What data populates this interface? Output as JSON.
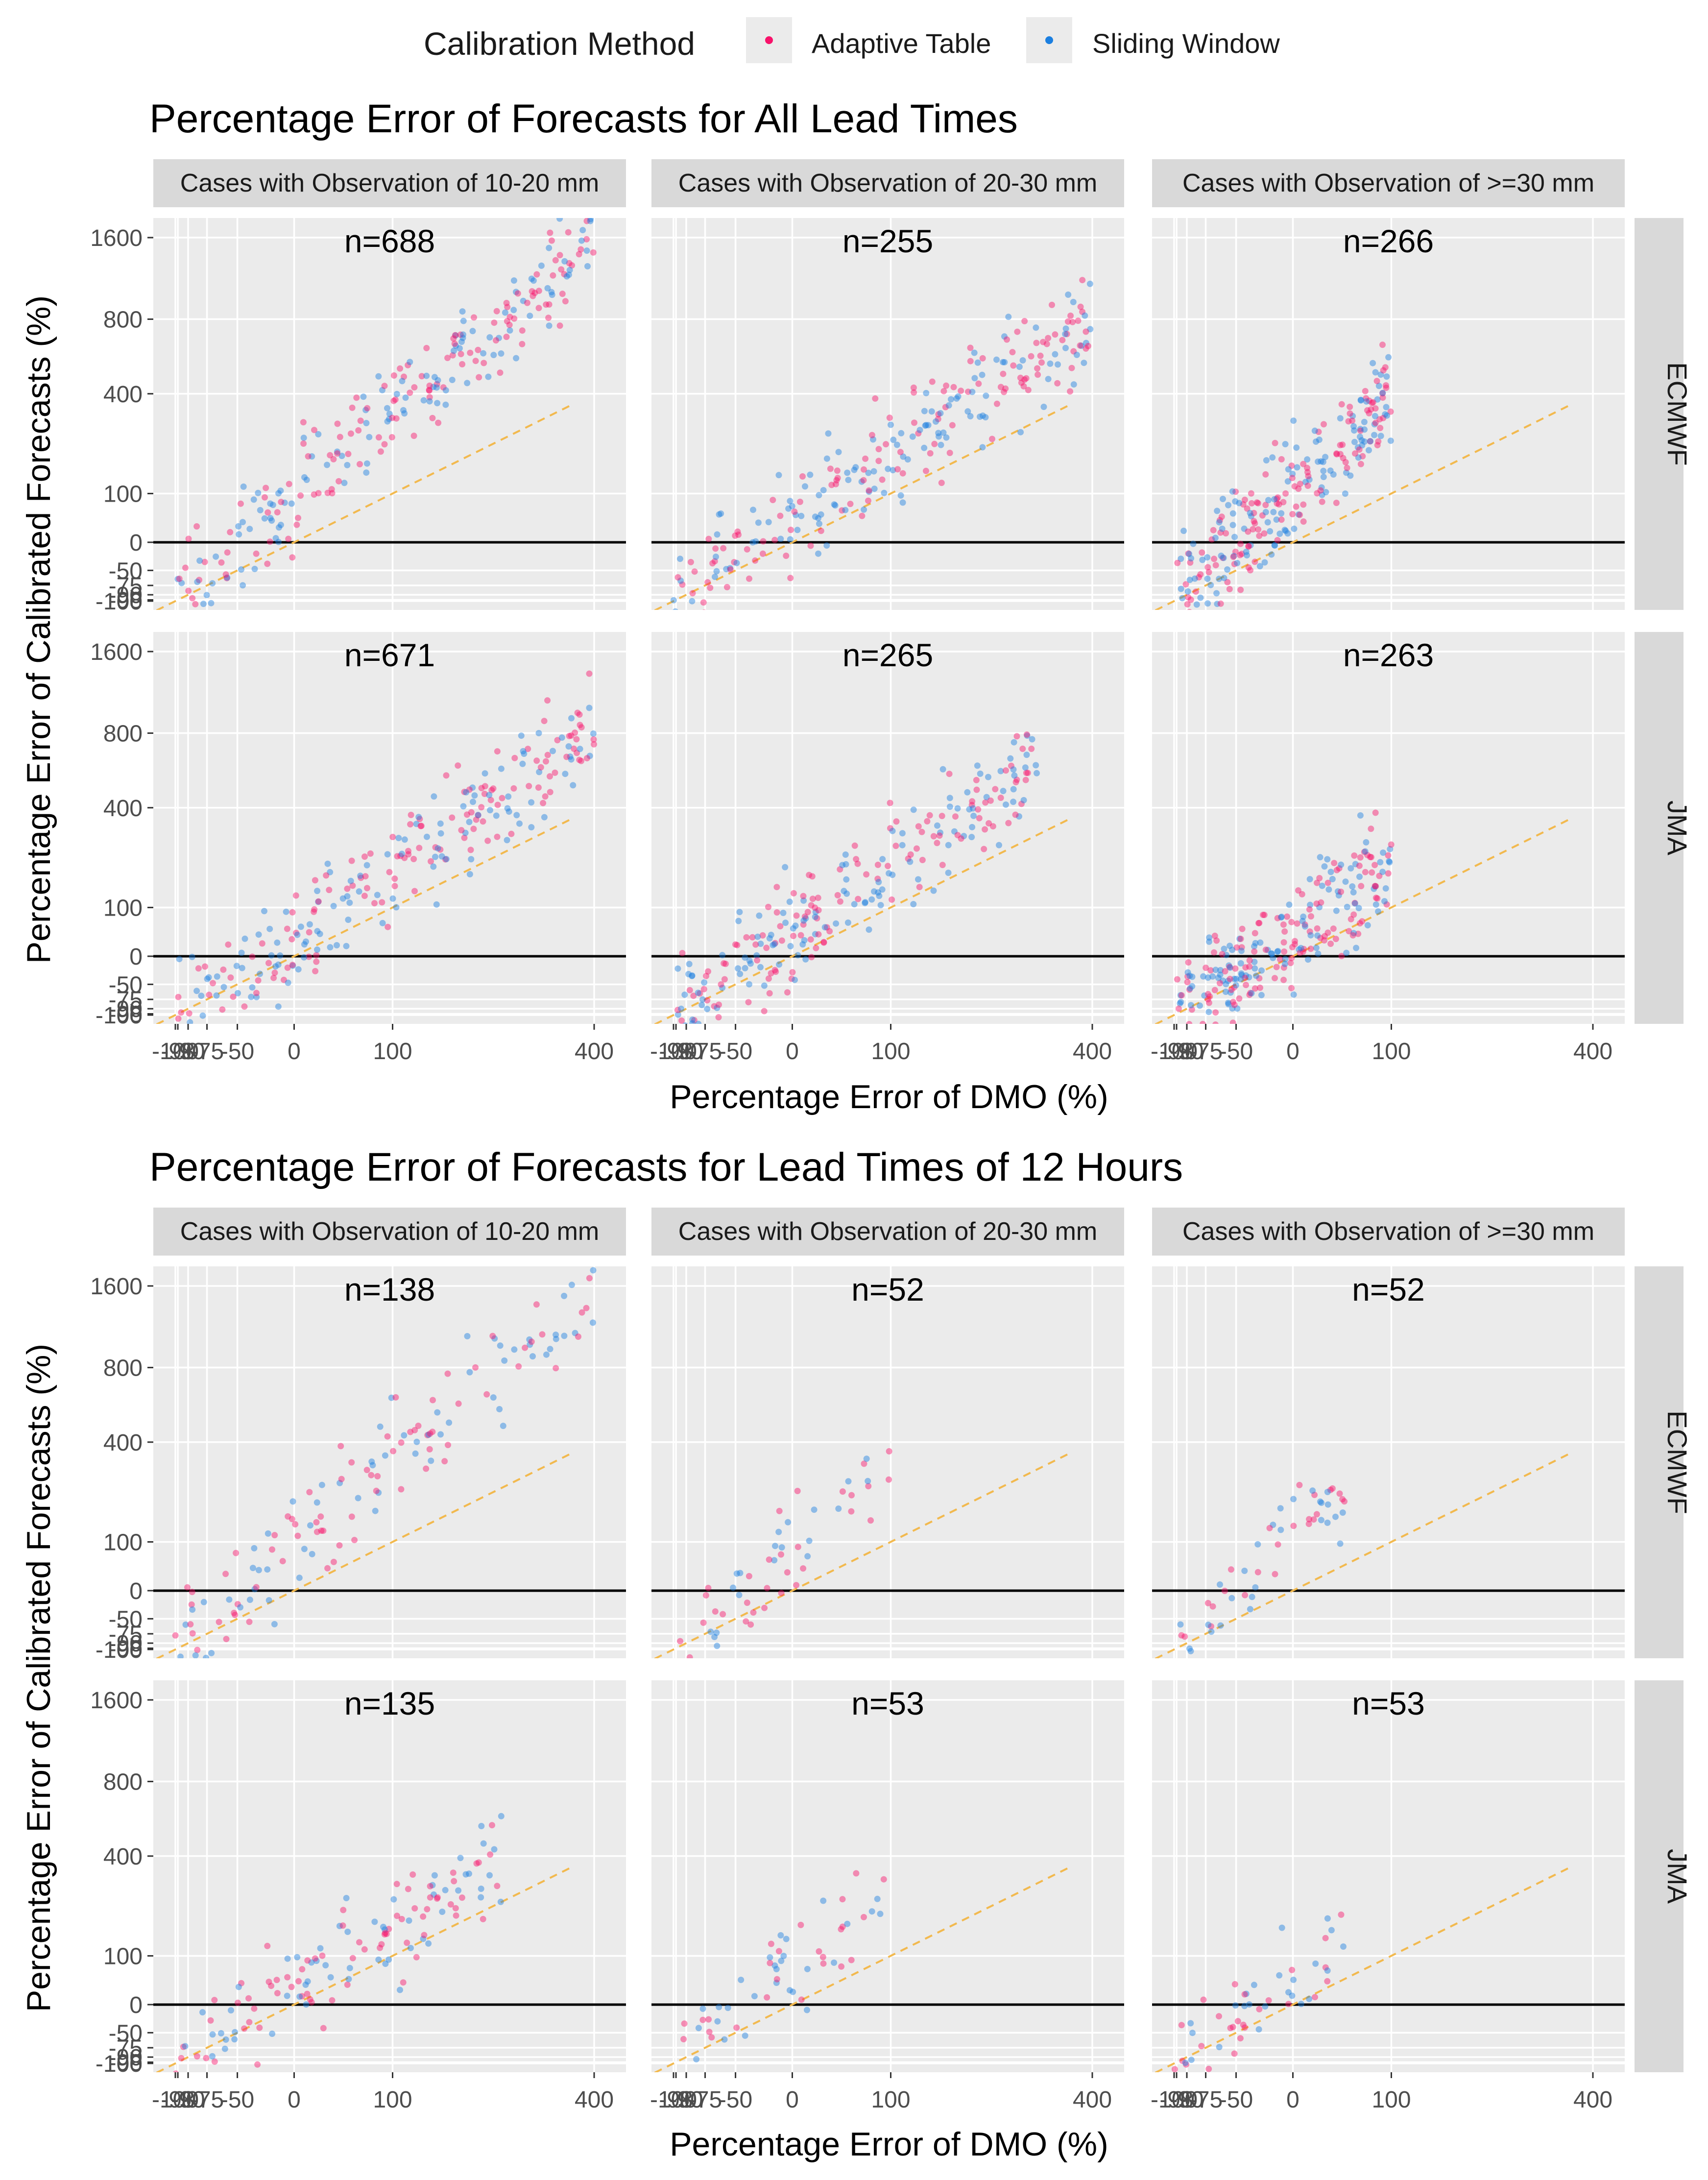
{
  "legend": {
    "title": "Calibration Method",
    "items": [
      {
        "label": "Adaptive Table",
        "color": "#F8126A"
      },
      {
        "label": "Sliding Window",
        "color": "#1B7FE0"
      }
    ]
  },
  "colors": {
    "panel_bg": "#EBEBEB",
    "strip_bg": "#D9D9D9",
    "grid": "#FFFFFF",
    "diagonal": "#F2B94E",
    "zero_line": "#000000",
    "text": "#1A1A1A",
    "tick_text": "#4D4D4D"
  },
  "chart_data": [
    {
      "type": "scatter",
      "title": "Percentage Error of Forecasts for All Lead Times",
      "xlabel": "Percentage Error of DMO (%)",
      "ylabel": "Percentage Error of Calibrated Forecasts (%)",
      "x_ticks": [
        "-100",
        "-98",
        "-90",
        "-75",
        "-50",
        "0",
        "100",
        "400"
      ],
      "y_ticks": [
        "1600",
        "800",
        "400",
        "100",
        "0",
        "-50",
        "-75",
        "-90",
        "-98",
        "-100"
      ],
      "columns": [
        "Cases with Observation of 10-20 mm",
        "Cases with Observation of 20-30 mm",
        "Cases with Observation of >=30 mm"
      ],
      "rows": [
        "ECMWF",
        "JMA"
      ],
      "reference_lines": [
        "y = x (dashed)",
        "y = 0"
      ],
      "panels": [
        {
          "row": "ECMWF",
          "column": "Cases with Observation of 10-20 mm",
          "n_label": "n=688",
          "n": 688,
          "x_range": [
            -100,
            400
          ],
          "y_range": [
            -100,
            1600
          ]
        },
        {
          "row": "ECMWF",
          "column": "Cases with Observation of 20-30 mm",
          "n_label": "n=255",
          "n": 255,
          "x_range": [
            -100,
            400
          ],
          "y_range": [
            -100,
            800
          ]
        },
        {
          "row": "ECMWF",
          "column": "Cases with Observation of >=30 mm",
          "n_label": "n=266",
          "n": 266,
          "x_range": [
            -98,
            100
          ],
          "y_range": [
            -99,
            400
          ]
        },
        {
          "row": "JMA",
          "column": "Cases with Observation of 10-20 mm",
          "n_label": "n=671",
          "n": 671,
          "x_range": [
            -100,
            400
          ],
          "y_range": [
            -100,
            800
          ]
        },
        {
          "row": "JMA",
          "column": "Cases with Observation of 20-30 mm",
          "n_label": "n=265",
          "n": 265,
          "x_range": [
            -100,
            300
          ],
          "y_range": [
            -100,
            600
          ]
        },
        {
          "row": "JMA",
          "column": "Cases with Observation of >=30 mm",
          "n_label": "n=263",
          "n": 263,
          "x_range": [
            -100,
            100
          ],
          "y_range": [
            -100,
            200
          ]
        }
      ]
    },
    {
      "type": "scatter",
      "title": "Percentage Error of Forecasts for Lead Times of 12 Hours",
      "xlabel": "Percentage Error of DMO (%)",
      "ylabel": "Percentage Error of Calibrated Forecasts (%)",
      "x_ticks": [
        "-100",
        "-98",
        "-90",
        "-75",
        "-50",
        "0",
        "100",
        "400"
      ],
      "y_ticks": [
        "1600",
        "800",
        "400",
        "100",
        "0",
        "-50",
        "-75",
        "-90",
        "-98",
        "-100"
      ],
      "columns": [
        "Cases with Observation of 10-20 mm",
        "Cases with Observation of 20-30 mm",
        "Cases with Observation of >=30 mm"
      ],
      "rows": [
        "ECMWF",
        "JMA"
      ],
      "reference_lines": [
        "y = x (dashed)",
        "y = 0"
      ],
      "panels": [
        {
          "row": "ECMWF",
          "column": "Cases with Observation of 10-20 mm",
          "n_label": "n=138",
          "n": 138,
          "x_range": [
            -100,
            400
          ],
          "y_range": [
            -100,
            1600
          ]
        },
        {
          "row": "ECMWF",
          "column": "Cases with Observation of 20-30 mm",
          "n_label": "n=52",
          "n": 52,
          "x_range": [
            -100,
            100
          ],
          "y_range": [
            -99,
            300
          ]
        },
        {
          "row": "ECMWF",
          "column": "Cases with Observation of >=30 mm",
          "n_label": "n=52",
          "n": 52,
          "x_range": [
            -98,
            50
          ],
          "y_range": [
            -98,
            250
          ]
        },
        {
          "row": "JMA",
          "column": "Cases with Observation of 10-20 mm",
          "n_label": "n=135",
          "n": 135,
          "x_range": [
            -100,
            250
          ],
          "y_range": [
            -100,
            400
          ]
        },
        {
          "row": "JMA",
          "column": "Cases with Observation of 20-30 mm",
          "n_label": "n=53",
          "n": 53,
          "x_range": [
            -100,
            100
          ],
          "y_range": [
            -100,
            300
          ]
        },
        {
          "row": "JMA",
          "column": "Cases with Observation of >=30 mm",
          "n_label": "n=53",
          "n": 53,
          "x_range": [
            -100,
            50
          ],
          "y_range": [
            -100,
            150
          ]
        }
      ]
    }
  ]
}
